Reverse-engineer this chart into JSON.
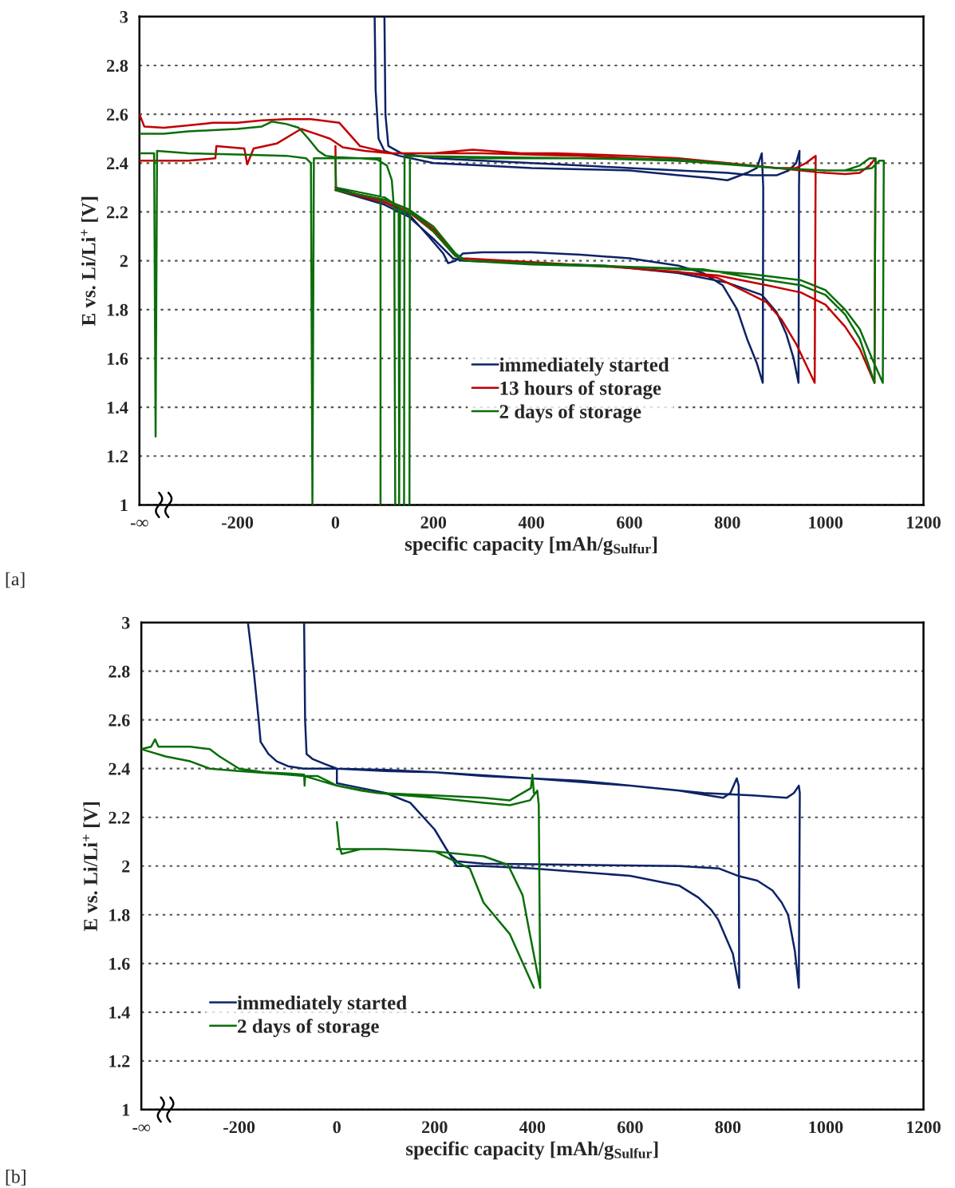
{
  "chart_data": [
    {
      "type": "line",
      "xlabel": "specific capacity [mAh/g$_{Sulfur}$]",
      "ylabel": "E vs. Li/Li$^{+}$ [V]",
      "xlim": [
        -400,
        1200
      ],
      "xticks": [
        {
          "value": -400,
          "label": "-∞"
        },
        -200,
        0,
        200,
        400,
        600,
        800,
        1000,
        1200
      ],
      "ylim": [
        1,
        3
      ],
      "yticks": [
        1,
        1.2,
        1.4,
        1.6,
        1.8,
        2,
        2.2,
        2.4,
        2.6,
        2.8,
        3
      ],
      "grid": "y",
      "legend": "bottom",
      "line_style": "solid",
      "annotations": [
        "[a]"
      ],
      "series": [
        {
          "name": "immediately started",
          "color": "#0d2366",
          "x": [
            0,
            30,
            100,
            150,
            190,
            220,
            230,
            245,
            260,
            300,
            400,
            500,
            600,
            700,
            750,
            790,
            820,
            840,
            860,
            872,
            873,
            870,
            860,
            840,
            800,
            760,
            700,
            600,
            500,
            400,
            300,
            200,
            130,
            100,
            88,
            82,
            80,
            null,
            0,
            100,
            150,
            200,
            240,
            260,
            400,
            550,
            700,
            800,
            870,
            900,
            920,
            935,
            945,
            946,
            947,
            940,
            925,
            900,
            850,
            800,
            700,
            600,
            500,
            400,
            300,
            200,
            135,
            108,
            102,
            100
          ],
          "values": [
            2.3,
            2.28,
            2.24,
            2.19,
            2.1,
            2.03,
            1.99,
            2.0,
            2.03,
            2.035,
            2.035,
            2.025,
            2.01,
            1.98,
            1.95,
            1.9,
            1.8,
            1.68,
            1.58,
            1.5,
            2.3,
            2.44,
            2.38,
            2.36,
            2.33,
            2.34,
            2.35,
            2.37,
            2.375,
            2.38,
            2.39,
            2.4,
            2.43,
            2.45,
            2.5,
            2.7,
            3.0,
            null,
            2.29,
            2.23,
            2.18,
            2.09,
            2.01,
            2.0,
            1.99,
            1.98,
            1.95,
            1.91,
            1.86,
            1.79,
            1.7,
            1.6,
            1.5,
            2.3,
            2.45,
            2.4,
            2.37,
            2.35,
            2.35,
            2.36,
            2.37,
            2.38,
            2.39,
            2.4,
            2.41,
            2.42,
            2.44,
            2.47,
            2.6,
            3.0
          ]
        },
        {
          "name": "13 hours of storage",
          "color": "#c00000",
          "x": [
            0,
            1,
            100,
            150,
            200,
            240,
            255,
            400,
            600,
            700,
            780,
            840,
            880,
            910,
            940,
            978,
            980,
            960,
            940,
            900,
            800,
            700,
            600,
            450,
            380,
            280,
            200,
            112,
            50,
            8,
            -50,
            -100,
            -150,
            -200,
            -250,
            -300,
            -350,
            -390,
            -400,
            null,
            -400,
            -300,
            -245,
            -243,
            -186,
            -180,
            -167,
            -120,
            -70,
            -40,
            -11,
            15,
            60,
            112,
            null,
            0,
            100,
            150,
            200,
            245,
            260,
            400,
            600,
            780,
            880,
            950,
            1000,
            1040,
            1070,
            1100,
            1102,
            1090,
            1070,
            1040,
            1000,
            950,
            850,
            700,
            500,
            300,
            112
          ],
          "values": [
            2.47,
            2.29,
            2.24,
            2.2,
            2.12,
            2.03,
            2.01,
            1.995,
            1.97,
            1.955,
            1.93,
            1.87,
            1.83,
            1.76,
            1.66,
            1.5,
            2.43,
            2.4,
            2.38,
            2.38,
            2.4,
            2.42,
            2.43,
            2.44,
            2.44,
            2.455,
            2.44,
            2.44,
            2.47,
            2.565,
            2.58,
            2.58,
            2.575,
            2.565,
            2.565,
            2.555,
            2.545,
            2.55,
            2.6,
            null,
            2.41,
            2.41,
            2.42,
            2.47,
            2.46,
            2.395,
            2.46,
            2.48,
            2.54,
            2.52,
            2.5,
            2.465,
            2.45,
            2.44,
            null,
            2.29,
            2.25,
            2.21,
            2.13,
            2.02,
            2.01,
            1.995,
            1.97,
            1.94,
            1.9,
            1.87,
            1.82,
            1.73,
            1.64,
            1.5,
            2.42,
            2.39,
            2.36,
            2.355,
            2.36,
            2.37,
            2.39,
            2.41,
            2.43,
            2.44,
            2.44
          ]
        },
        {
          "name": "2 days of storage",
          "color": "#0a6e0a",
          "x": [
            -400,
            -350,
            -300,
            -250,
            -200,
            -150,
            -130,
            -100,
            -75,
            -55,
            -35,
            -20,
            0,
            50,
            85,
            105,
            115,
            120,
            122,
            null,
            -400,
            -370,
            -367,
            -364,
            -300,
            -200,
            -100,
            -60,
            -50,
            -47,
            -44,
            0,
            92,
            92,
            null,
            0,
            1,
            100,
            129,
            130,
            132,
            160,
            200,
            245,
            265,
            400,
            600,
            750,
            850,
            950,
            1000,
            1040,
            1070,
            1095,
            1117,
            1119,
            1110,
            1095,
            1060,
            1000,
            900,
            700,
            500,
            300,
            152,
            151,
            null,
            0,
            100,
            150,
            200,
            245,
            265,
            400,
            600,
            750,
            850,
            950,
            1000,
            1040,
            1070,
            1100,
            1102,
            1090,
            1070,
            1040,
            1000,
            900,
            700,
            500,
            300,
            141,
            140
          ],
          "values": [
            2.52,
            2.52,
            2.53,
            2.535,
            2.54,
            2.55,
            2.57,
            2.56,
            2.545,
            2.5,
            2.45,
            2.43,
            2.425,
            2.42,
            2.415,
            2.39,
            2.33,
            2.2,
            1.0,
            null,
            2.44,
            2.44,
            1.28,
            2.45,
            2.44,
            2.435,
            2.43,
            2.42,
            2.4,
            1.0,
            2.42,
            2.42,
            2.42,
            1.0,
            null,
            2.42,
            2.3,
            2.26,
            2.22,
            1.0,
            2.21,
            2.19,
            2.12,
            2.02,
            2.0,
            1.99,
            1.975,
            1.96,
            1.945,
            1.92,
            1.88,
            1.8,
            1.72,
            1.6,
            1.5,
            2.41,
            2.41,
            2.38,
            2.37,
            2.37,
            2.38,
            2.41,
            2.42,
            2.42,
            2.43,
            1.0,
            null,
            2.29,
            2.25,
            2.21,
            2.14,
            2.03,
            2.0,
            1.985,
            1.975,
            1.965,
            1.93,
            1.9,
            1.86,
            1.78,
            1.68,
            1.5,
            2.42,
            2.42,
            2.39,
            2.37,
            2.37,
            2.38,
            2.415,
            2.42,
            2.425,
            2.43,
            1.0
          ]
        }
      ]
    },
    {
      "type": "line",
      "xlabel": "specific capacity [mAh/g$_{Sulfur}$]",
      "ylabel": "E vs. Li/Li$^{+}$ [V]",
      "xlim": [
        -400,
        1200
      ],
      "xticks": [
        {
          "value": -400,
          "label": "-∞"
        },
        -200,
        0,
        200,
        400,
        600,
        800,
        1000,
        1200
      ],
      "ylim": [
        1,
        3
      ],
      "yticks": [
        1,
        1.2,
        1.4,
        1.6,
        1.8,
        2,
        2.2,
        2.4,
        2.6,
        2.8,
        3
      ],
      "grid": "y",
      "legend": "bottom left",
      "line_style": "solid",
      "annotations": [
        "[b]"
      ],
      "series": [
        {
          "name": "immediately started",
          "color": "#0d2366",
          "x": [
            -182,
            -170,
            -160,
            -156,
            -140,
            -123,
            -100,
            -68,
            0,
            100,
            200,
            300,
            400,
            500,
            600,
            700,
            760,
            790,
            805,
            818,
            822,
            823,
            null,
            0,
            0,
            50,
            100,
            150,
            200,
            230,
            245,
            300,
            500,
            700,
            782,
            820,
            860,
            891,
            910,
            923,
            937,
            945,
            947,
            945,
            935,
            920,
            850,
            750,
            600,
            400,
            200,
            100,
            0,
            -26,
            -50,
            -62,
            -65,
            -67,
            null,
            823,
            810,
            780,
            766,
            740,
            700,
            600,
            400,
            300,
            245,
            230,
            200,
            150,
            100,
            50,
            0
          ],
          "values": [
            3.0,
            2.8,
            2.6,
            2.51,
            2.46,
            2.43,
            2.41,
            2.4,
            2.4,
            2.395,
            2.385,
            2.37,
            2.36,
            2.35,
            2.33,
            2.31,
            2.29,
            2.28,
            2.3,
            2.36,
            2.33,
            1.5,
            null,
            2.4,
            2.34,
            2.32,
            2.3,
            2.26,
            2.15,
            2.05,
            2.02,
            2.01,
            2.005,
            2.0,
            1.99,
            1.96,
            1.94,
            1.9,
            1.85,
            1.8,
            1.65,
            1.5,
            2.3,
            2.33,
            2.3,
            2.28,
            2.29,
            2.3,
            2.33,
            2.36,
            2.385,
            2.39,
            2.4,
            2.42,
            2.44,
            2.46,
            2.6,
            3.0,
            null,
            1.5,
            1.64,
            1.78,
            1.82,
            1.87,
            1.92,
            1.96,
            1.99,
            2.0,
            2.0,
            2.05,
            2.15,
            2.26,
            2.3,
            2.32,
            2.34
          ]
        },
        {
          "name": "2 days of storage",
          "color": "#0a6e0a",
          "x": [
            -400,
            -380,
            -372,
            -365,
            -340,
            -300,
            -260,
            -240,
            -200,
            -150,
            -100,
            -67,
            -66,
            -65,
            -40,
            -20,
            0,
            83,
            200,
            300,
            354,
            397,
            400,
            403,
            null,
            -400,
            -350,
            -300,
            -260,
            -200,
            -100,
            -67,
            0,
            50,
            83,
            200,
            300,
            354,
            395,
            410,
            413,
            416,
            null,
            0,
            5,
            10,
            50,
            100,
            200,
            272,
            300,
            354,
            403,
            null,
            0,
            100,
            200,
            300,
            350,
            380,
            392,
            416
          ],
          "values": [
            2.48,
            2.49,
            2.52,
            2.49,
            2.49,
            2.49,
            2.48,
            2.45,
            2.4,
            2.385,
            2.38,
            2.375,
            2.33,
            2.37,
            2.37,
            2.35,
            2.33,
            2.3,
            2.29,
            2.28,
            2.27,
            2.32,
            2.375,
            2.3,
            null,
            2.48,
            2.45,
            2.43,
            2.4,
            2.39,
            2.375,
            2.37,
            2.33,
            2.31,
            2.3,
            2.28,
            2.26,
            2.25,
            2.27,
            2.31,
            2.25,
            1.5,
            null,
            2.18,
            2.08,
            2.05,
            2.07,
            2.07,
            2.06,
            1.99,
            1.85,
            1.72,
            1.5,
            null,
            2.07,
            2.07,
            2.06,
            2.04,
            2.005,
            1.88,
            1.75,
            1.5
          ]
        }
      ]
    }
  ]
}
